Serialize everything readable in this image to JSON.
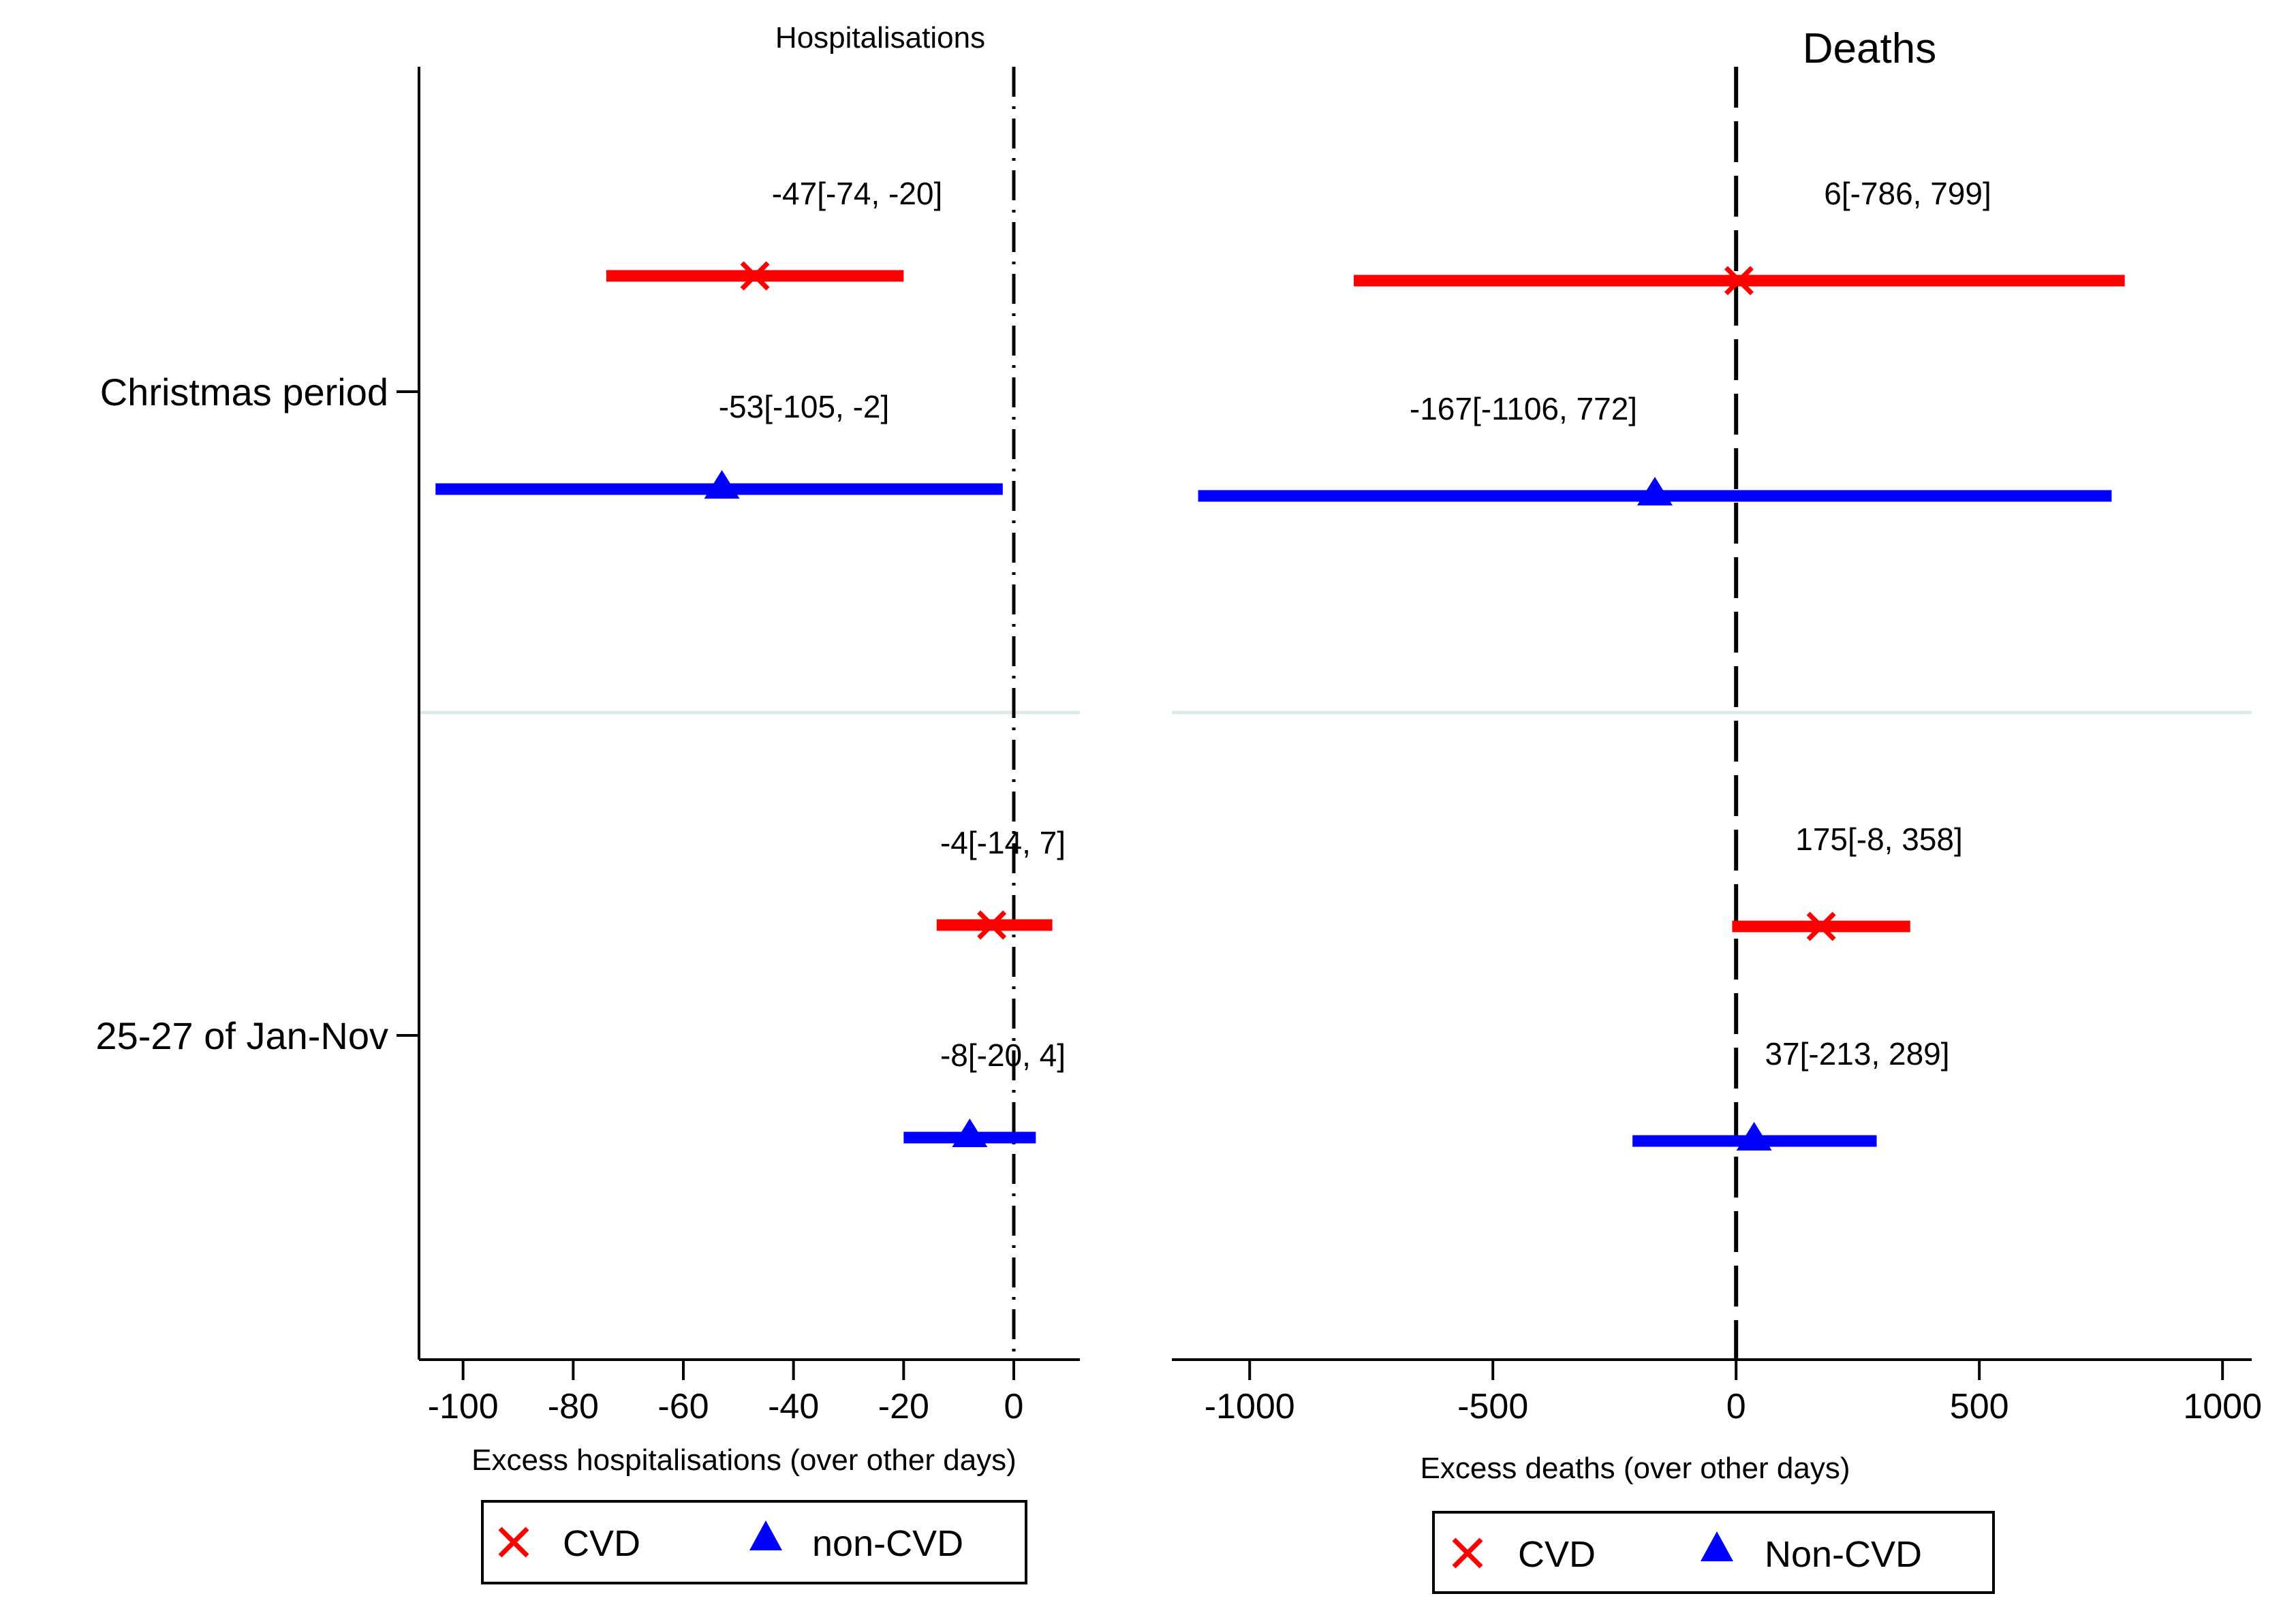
{
  "chart_data": [
    {
      "panel": "left",
      "type": "scatter",
      "subtype": "forest-plot",
      "title": "Hospitalisations",
      "xlabel": "Excess hospitalisations (over other days)",
      "ylabel": "",
      "xlim": [
        -108,
        12
      ],
      "xticks": [
        -100,
        -80,
        -60,
        -40,
        -20,
        0
      ],
      "xtick_labels": [
        "-100",
        "-80",
        "-60",
        "-40",
        "-20",
        "0"
      ],
      "reference_line": 0,
      "reference_style": "dash-dot",
      "categories": [
        "Christmas period",
        "25-27 of Jan-Nov"
      ],
      "series": [
        {
          "name": "CVD",
          "marker": "x",
          "color": "#ff0000",
          "points": [
            {
              "category": "Christmas period",
              "estimate": -47,
              "ci_low": -74,
              "ci_high": -20,
              "label": "-47[-74, -20]"
            },
            {
              "category": "25-27 of Jan-Nov",
              "estimate": -4,
              "ci_low": -14,
              "ci_high": 7,
              "label": "-4[-14, 7]"
            }
          ]
        },
        {
          "name": "non-CVD",
          "marker": "triangle",
          "color": "#0000ff",
          "points": [
            {
              "category": "Christmas period",
              "estimate": -53,
              "ci_low": -105,
              "ci_high": -2,
              "label": "-53[-105, -2]"
            },
            {
              "category": "25-27 of Jan-Nov",
              "estimate": -8,
              "ci_low": -20,
              "ci_high": 4,
              "label": "-8[-20, 4]"
            }
          ]
        }
      ],
      "legend": [
        "CVD",
        "non-CVD"
      ],
      "legend_position": "bottom"
    },
    {
      "panel": "right",
      "type": "scatter",
      "subtype": "forest-plot",
      "title": "Deaths",
      "xlabel": "Excess deaths (over other days)",
      "ylabel": "",
      "xlim": [
        -1160,
        1060
      ],
      "xticks": [
        -1000,
        -500,
        0,
        500,
        1000
      ],
      "xtick_labels": [
        "-1000",
        "-500",
        "0",
        "500",
        "1000"
      ],
      "reference_line": 0,
      "reference_style": "dashed",
      "categories": [
        "Christmas period",
        "25-27 of Jan-Nov"
      ],
      "series": [
        {
          "name": "CVD",
          "marker": "x",
          "color": "#ff0000",
          "points": [
            {
              "category": "Christmas period",
              "estimate": 6,
              "ci_low": -786,
              "ci_high": 799,
              "label": "6[-786, 799]"
            },
            {
              "category": "25-27 of Jan-Nov",
              "estimate": 175,
              "ci_low": -8,
              "ci_high": 358,
              "label": "175[-8, 358]"
            }
          ]
        },
        {
          "name": "Non-CVD",
          "marker": "triangle",
          "color": "#0000ff",
          "points": [
            {
              "category": "Christmas period",
              "estimate": -167,
              "ci_low": -1106,
              "ci_high": 772,
              "label": "-167[-1106, 772]"
            },
            {
              "category": "25-27 of Jan-Nov",
              "estimate": 37,
              "ci_low": -213,
              "ci_high": 289,
              "label": "37[-213, 289]"
            }
          ]
        }
      ],
      "legend": [
        "CVD",
        "Non-CVD"
      ],
      "legend_position": "bottom"
    }
  ]
}
